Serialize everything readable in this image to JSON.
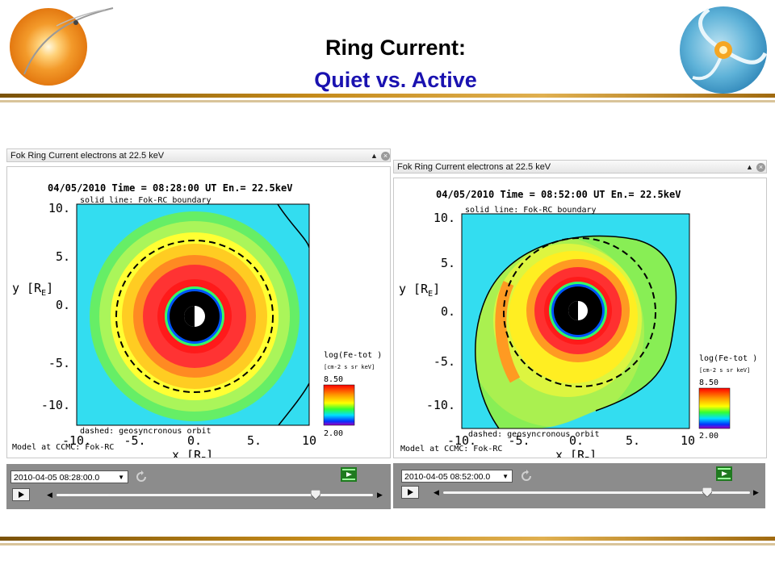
{
  "slide": {
    "title_line1": "Ring Current:",
    "title_line2": "Quiet vs. Active"
  },
  "panels": [
    {
      "header_title": "Fok Ring Current electrons at 22.5 keV",
      "plot_title": "04/05/2010 Time = 08:28:00 UT En.= 22.5keV",
      "solid_note": "solid line: Fok-RC boundary",
      "dashed_note": "dashed: geosyncronous orbit",
      "model_note": "Model at CCMC: Fok-RC",
      "y_label": "y [R",
      "x_label": "x [R",
      "axis_sub": "E",
      "y_ticks": [
        "10.",
        "5.",
        "0.",
        "-5.",
        "-10."
      ],
      "x_ticks": [
        "-10.",
        "-5.",
        "0.",
        "5.",
        "10"
      ],
      "colorbar_title": "log(Fe-tot )",
      "colorbar_units": "[cm-2 s sr keV]",
      "colorbar_max": "8.50",
      "colorbar_min": "2.00",
      "timestamp": "2010-04-05 08:28:00.0",
      "slider_position": 0.82
    },
    {
      "header_title": "Fok Ring Current electrons at 22.5 keV",
      "plot_title": "04/05/2010 Time = 08:52:00 UT En.= 22.5keV",
      "solid_note": "solid line: Fok-RC boundary",
      "dashed_note": "dashed: geosyncronous orbit",
      "model_note": "Model at CCMC: Fok-RC",
      "y_label": "y [R",
      "x_label": "x [R",
      "axis_sub": "E",
      "y_ticks": [
        "10.",
        "5.",
        "0.",
        "-5.",
        "-10."
      ],
      "x_ticks": [
        "-10.",
        "-5.",
        "0.",
        "5.",
        "10"
      ],
      "colorbar_title": "log(Fe-tot )",
      "colorbar_units": "[cm-2 s sr keV]",
      "colorbar_max": "8.50",
      "colorbar_min": "2.00",
      "timestamp": "2010-04-05 08:52:00.0",
      "slider_position": 0.86
    }
  ],
  "colors": {
    "background_cyan": "#33ddf0",
    "title_blue": "#1a12b0",
    "control_bar": "#8c8c8c"
  }
}
